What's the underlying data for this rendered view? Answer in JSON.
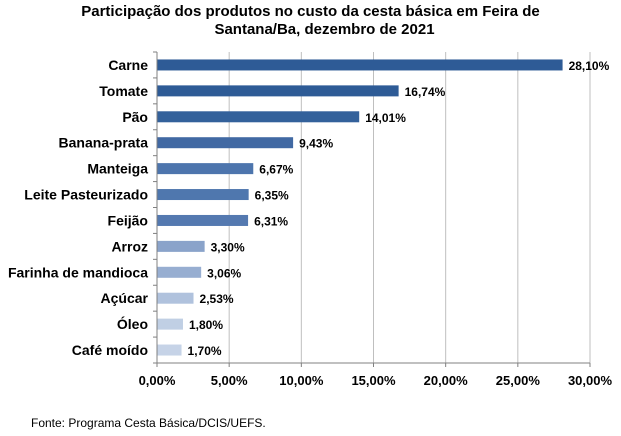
{
  "chart_data": {
    "type": "bar",
    "orientation": "horizontal",
    "title": "Participação dos produtos no custo da cesta básica em Feira de Santana/Ba, dezembro de 2021",
    "title_lines": [
      "Participação dos produtos no custo da cesta básica em Feira de",
      "Santana/Ba, dezembro de 2021"
    ],
    "categories": [
      "Carne",
      "Tomate",
      "Pão",
      "Banana-prata",
      "Manteiga",
      "Leite Pasteurizado",
      "Feijão",
      "Arroz",
      "Farinha de mandioca",
      "Açúcar",
      "Óleo",
      "Café moído"
    ],
    "values": [
      28.1,
      16.74,
      14.01,
      9.43,
      6.67,
      6.35,
      6.31,
      3.3,
      3.06,
      2.53,
      1.8,
      1.7
    ],
    "value_labels": [
      "28,10%",
      "16,74%",
      "14,01%",
      "9,43%",
      "6,67%",
      "6,35%",
      "6,31%",
      "3,30%",
      "3,06%",
      "2,53%",
      "1,80%",
      "1,70%"
    ],
    "bar_colors": [
      "#2e5b96",
      "#2e5b96",
      "#33619b",
      "#4169a3",
      "#4d75ad",
      "#4f77ae",
      "#5479b0",
      "#8aa3ca",
      "#97aed1",
      "#b0c2dd",
      "#c0cfe4",
      "#c6d3e7"
    ],
    "xlim": [
      0,
      30
    ],
    "xticks": [
      0,
      5,
      10,
      15,
      20,
      25,
      30
    ],
    "xtick_labels": [
      "0,00%",
      "5,00%",
      "10,00%",
      "15,00%",
      "20,00%",
      "25,00%",
      "30,00%"
    ],
    "grid": "vertical",
    "legend": "none",
    "xlabel": "",
    "ylabel": ""
  },
  "source_note": "Fonte: Programa Cesta Básica/DCIS/UEFS."
}
